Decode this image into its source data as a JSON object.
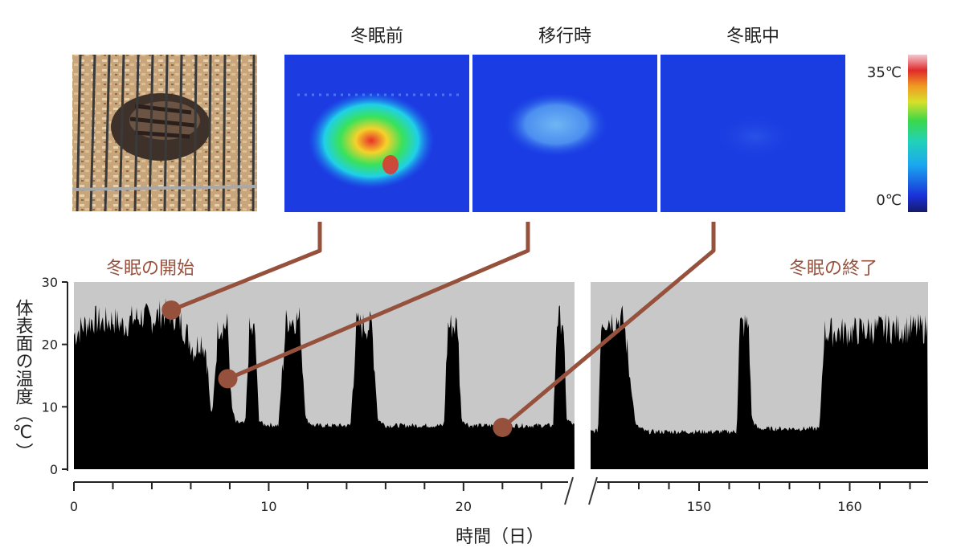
{
  "panels": {
    "labels": [
      "冬眠前",
      "移行時",
      "冬眠中"
    ],
    "scale": {
      "max_label": "35℃",
      "min_label": "0℃"
    }
  },
  "annotations": {
    "start": "冬眠の開始",
    "end": "冬眠の終了"
  },
  "colors": {
    "accent": "#96513d",
    "plot_bg": "#c8c8c8",
    "trace": "#000000",
    "thermal_bg": "#1636e0"
  },
  "chart_data": {
    "type": "area",
    "title": "",
    "ylabel": "体表面の温度（℃）",
    "xlabel": "時間（日）",
    "ylim": [
      0,
      30
    ],
    "yticks": [
      "0",
      "10",
      "20",
      "30"
    ],
    "broken_axis": true,
    "segments": [
      {
        "xlim": [
          0,
          25.7
        ],
        "xticks": [
          "0",
          "10",
          "20"
        ],
        "tick_values": [
          0,
          10,
          20
        ],
        "points": [
          [
            0,
            21.5
          ],
          [
            0.5,
            23
          ],
          [
            1,
            24
          ],
          [
            1.5,
            23.5
          ],
          [
            2,
            24
          ],
          [
            2.5,
            23
          ],
          [
            3,
            24
          ],
          [
            3.5,
            24.5
          ],
          [
            4,
            24
          ],
          [
            4.5,
            25
          ],
          [
            5,
            25
          ],
          [
            5.5,
            23.5
          ],
          [
            5.9,
            21
          ],
          [
            6.2,
            19
          ],
          [
            6.5,
            21
          ],
          [
            6.8,
            19
          ],
          [
            7,
            10
          ],
          [
            7.1,
            8.5
          ],
          [
            7.4,
            23
          ],
          [
            7.9,
            23
          ],
          [
            8.1,
            10
          ],
          [
            8.3,
            7.5
          ],
          [
            8.8,
            7.3
          ],
          [
            9,
            22
          ],
          [
            9.3,
            22
          ],
          [
            9.5,
            8
          ],
          [
            9.7,
            7.2
          ],
          [
            10.5,
            7
          ],
          [
            10.9,
            24
          ],
          [
            11.6,
            24
          ],
          [
            11.9,
            8
          ],
          [
            12.3,
            7
          ],
          [
            14.2,
            7
          ],
          [
            14.5,
            23
          ],
          [
            15.3,
            23
          ],
          [
            15.6,
            8
          ],
          [
            16,
            7
          ],
          [
            19,
            7
          ],
          [
            19.2,
            23
          ],
          [
            19.7,
            23
          ],
          [
            19.9,
            8
          ],
          [
            20.3,
            7
          ],
          [
            24.6,
            7
          ],
          [
            24.8,
            24
          ],
          [
            25.1,
            24
          ],
          [
            25.3,
            8
          ],
          [
            25.7,
            7
          ]
        ]
      },
      {
        "xlim": [
          142.8,
          165.2
        ],
        "xticks": [
          "150",
          "160"
        ],
        "tick_values": [
          150,
          160
        ],
        "points": [
          [
            142.8,
            6
          ],
          [
            143.3,
            6.2
          ],
          [
            143.5,
            24
          ],
          [
            145,
            24
          ],
          [
            145.5,
            13
          ],
          [
            145.8,
            7
          ],
          [
            146.5,
            6
          ],
          [
            152.5,
            6
          ],
          [
            152.7,
            23
          ],
          [
            153.3,
            23
          ],
          [
            153.5,
            8
          ],
          [
            153.9,
            6.5
          ],
          [
            158,
            6.5
          ],
          [
            158.3,
            22
          ],
          [
            160,
            22
          ],
          [
            162,
            22.5
          ],
          [
            164,
            22.5
          ],
          [
            165.2,
            22.5
          ]
        ]
      }
    ],
    "annotations": [
      {
        "x": 5,
        "y": 25.5,
        "panel": "冬眠前"
      },
      {
        "x": 7.9,
        "y": 14.5,
        "panel": "移行時"
      },
      {
        "x": 22,
        "y": 6.7,
        "panel": "冬眠中"
      }
    ]
  }
}
